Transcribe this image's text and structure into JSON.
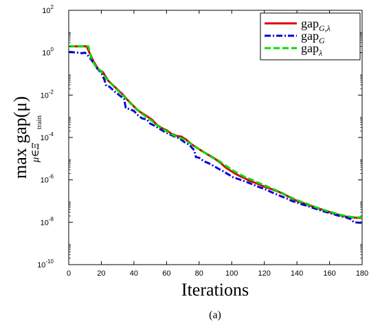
{
  "chart_data": {
    "type": "line",
    "title": "",
    "xlabel": "Iterations",
    "ylabel": {
      "main": "max  gap(μ)",
      "sub": "μ∈Ξ",
      "sub_sub": "train"
    },
    "caption": "(a)",
    "xlim": [
      0,
      180
    ],
    "ylim": [
      1e-10,
      100
    ],
    "yscale": "log",
    "xticks": [
      0,
      20,
      40,
      60,
      80,
      100,
      120,
      140,
      160,
      180
    ],
    "yticks": [
      {
        "value": 1e-10,
        "base": "10",
        "exp": "-10"
      },
      {
        "value": 1e-08,
        "base": "10",
        "exp": "-8"
      },
      {
        "value": 1e-06,
        "base": "10",
        "exp": "-6"
      },
      {
        "value": 0.0001,
        "base": "10",
        "exp": "-4"
      },
      {
        "value": 0.01,
        "base": "10",
        "exp": "-2"
      },
      {
        "value": 1,
        "base": "10",
        "exp": "0"
      },
      {
        "value": 100,
        "base": "10",
        "exp": "2"
      }
    ],
    "grid": false,
    "legend_position": "top-right",
    "series": [
      {
        "name": "gap",
        "name_sub": "G,λ",
        "color": "#dd0000",
        "dash": "solid",
        "points": [
          [
            0,
            2.0
          ],
          [
            11,
            2.0
          ],
          [
            13,
            0.9
          ],
          [
            15,
            0.42
          ],
          [
            18,
            0.17
          ],
          [
            21,
            0.12
          ],
          [
            24,
            0.05
          ],
          [
            27,
            0.03
          ],
          [
            30,
            0.018
          ],
          [
            33,
            0.011
          ],
          [
            36,
            0.006
          ],
          [
            39,
            0.0035
          ],
          [
            42,
            0.002
          ],
          [
            45,
            0.0014
          ],
          [
            48,
            0.001
          ],
          [
            51,
            0.0007
          ],
          [
            54,
            0.0004
          ],
          [
            57,
            0.00028
          ],
          [
            60,
            0.00022
          ],
          [
            63,
            0.00015
          ],
          [
            66,
            0.00012
          ],
          [
            69,
            0.00011
          ],
          [
            72,
            8e-05
          ],
          [
            75,
            5e-05
          ],
          [
            78,
            3.5e-05
          ],
          [
            81,
            2.5e-05
          ],
          [
            84,
            1.8e-05
          ],
          [
            87,
            1.3e-05
          ],
          [
            90,
            9.5e-06
          ],
          [
            93,
            6.5e-06
          ],
          [
            96,
            4e-06
          ],
          [
            99,
            2.8e-06
          ],
          [
            102,
            2e-06
          ],
          [
            105,
            1.5e-06
          ],
          [
            108,
            1.2e-06
          ],
          [
            111,
            9e-07
          ],
          [
            114,
            7.5e-07
          ],
          [
            117,
            6e-07
          ],
          [
            120,
            4.8e-07
          ],
          [
            123,
            4e-07
          ],
          [
            126,
            3.3e-07
          ],
          [
            129,
            2.7e-07
          ],
          [
            132,
            2.1e-07
          ],
          [
            135,
            1.6e-07
          ],
          [
            138,
            1.2e-07
          ],
          [
            141,
            9.5e-08
          ],
          [
            144,
            8e-08
          ],
          [
            147,
            6.5e-08
          ],
          [
            150,
            5.5e-08
          ],
          [
            153,
            4.5e-08
          ],
          [
            156,
            3.8e-08
          ],
          [
            159,
            3.2e-08
          ],
          [
            162,
            2.7e-08
          ],
          [
            165,
            2.3e-08
          ],
          [
            168,
            2e-08
          ],
          [
            171,
            1.8e-08
          ],
          [
            174,
            1.7e-08
          ],
          [
            177,
            1.6e-08
          ],
          [
            180,
            1.6e-08
          ]
        ]
      },
      {
        "name": "gap",
        "name_sub": "G",
        "color": "#0000dd",
        "dash": "dashdot",
        "points": [
          [
            0,
            1.1
          ],
          [
            6,
            1.0
          ],
          [
            8,
            0.95
          ],
          [
            10,
            1.0
          ],
          [
            12,
            0.7
          ],
          [
            14,
            0.45
          ],
          [
            17,
            0.2
          ],
          [
            20,
            0.11
          ],
          [
            22,
            0.05
          ],
          [
            23,
            0.027
          ],
          [
            25,
            0.025
          ],
          [
            28,
            0.015
          ],
          [
            31,
            0.01
          ],
          [
            34,
            0.0065
          ],
          [
            35,
            0.0025
          ],
          [
            37,
            0.0022
          ],
          [
            40,
            0.0018
          ],
          [
            42,
            0.0012
          ],
          [
            45,
            0.0008
          ],
          [
            48,
            0.0007
          ],
          [
            50,
            0.00045
          ],
          [
            53,
            0.00035
          ],
          [
            56,
            0.00025
          ],
          [
            59,
            0.00018
          ],
          [
            62,
            0.00014
          ],
          [
            65,
            0.00011
          ],
          [
            68,
            9e-05
          ],
          [
            71,
            6e-05
          ],
          [
            74,
            4.5e-05
          ],
          [
            77,
            2.5e-05
          ],
          [
            78,
            1.2e-05
          ],
          [
            80,
            1.1e-05
          ],
          [
            83,
            7.5e-06
          ],
          [
            86,
            6e-06
          ],
          [
            89,
            4.5e-06
          ],
          [
            92,
            3.3e-06
          ],
          [
            95,
            2.5e-06
          ],
          [
            98,
            1.8e-06
          ],
          [
            101,
            1.3e-06
          ],
          [
            104,
            1.1e-06
          ],
          [
            107,
            9e-07
          ],
          [
            110,
            7.5e-07
          ],
          [
            113,
            6e-07
          ],
          [
            116,
            4.8e-07
          ],
          [
            119,
            4e-07
          ],
          [
            122,
            3.2e-07
          ],
          [
            125,
            2.5e-07
          ],
          [
            128,
            2e-07
          ],
          [
            131,
            1.6e-07
          ],
          [
            134,
            1.3e-07
          ],
          [
            137,
            1e-07
          ],
          [
            140,
            8.5e-08
          ],
          [
            143,
            7e-08
          ],
          [
            146,
            6e-08
          ],
          [
            149,
            5e-08
          ],
          [
            152,
            4.2e-08
          ],
          [
            155,
            3.5e-08
          ],
          [
            158,
            3e-08
          ],
          [
            161,
            2.6e-08
          ],
          [
            164,
            2.2e-08
          ],
          [
            167,
            1.9e-08
          ],
          [
            170,
            1.7e-08
          ],
          [
            173,
            1.4e-08
          ],
          [
            175,
            1e-08
          ],
          [
            178,
            9.5e-09
          ],
          [
            180,
            9.5e-09
          ]
        ]
      },
      {
        "name": "gap",
        "name_sub": "λ",
        "color": "#00dd00",
        "dash": "dashed",
        "points": [
          [
            0,
            2.0
          ],
          [
            12,
            2.0
          ],
          [
            14,
            0.5
          ],
          [
            17,
            0.2
          ],
          [
            20,
            0.13
          ],
          [
            23,
            0.06
          ],
          [
            26,
            0.035
          ],
          [
            29,
            0.02
          ],
          [
            32,
            0.012
          ],
          [
            35,
            0.007
          ],
          [
            38,
            0.004
          ],
          [
            41,
            0.0025
          ],
          [
            44,
            0.0015
          ],
          [
            47,
            0.001
          ],
          [
            50,
            0.0007
          ],
          [
            53,
            0.00045
          ],
          [
            56,
            0.0003
          ],
          [
            59,
            0.00022
          ],
          [
            62,
            0.00016
          ],
          [
            65,
            0.00012
          ],
          [
            68,
            0.0001
          ],
          [
            71,
            8e-05
          ],
          [
            74,
            5.5e-05
          ],
          [
            77,
            4e-05
          ],
          [
            80,
            2.8e-05
          ],
          [
            83,
            2e-05
          ],
          [
            86,
            1.5e-05
          ],
          [
            89,
            1.1e-05
          ],
          [
            92,
            8e-06
          ],
          [
            95,
            5.5e-06
          ],
          [
            98,
            3.8e-06
          ],
          [
            101,
            2.7e-06
          ],
          [
            104,
            2e-06
          ],
          [
            107,
            1.5e-06
          ],
          [
            110,
            1.2e-06
          ],
          [
            113,
            9.5e-07
          ],
          [
            116,
            7.5e-07
          ],
          [
            119,
            6e-07
          ],
          [
            122,
            4.8e-07
          ],
          [
            125,
            3.8e-07
          ],
          [
            128,
            3e-07
          ],
          [
            131,
            2.4e-07
          ],
          [
            134,
            1.8e-07
          ],
          [
            137,
            1.4e-07
          ],
          [
            140,
            1.1e-07
          ],
          [
            143,
            9e-08
          ],
          [
            146,
            7.5e-08
          ],
          [
            149,
            6e-08
          ],
          [
            152,
            5e-08
          ],
          [
            155,
            4.2e-08
          ],
          [
            158,
            3.5e-08
          ],
          [
            161,
            3e-08
          ],
          [
            164,
            2.6e-08
          ],
          [
            167,
            2.2e-08
          ],
          [
            170,
            2e-08
          ],
          [
            173,
            1.8e-08
          ],
          [
            176,
            1.7e-08
          ],
          [
            180,
            1.7e-08
          ]
        ]
      }
    ]
  }
}
